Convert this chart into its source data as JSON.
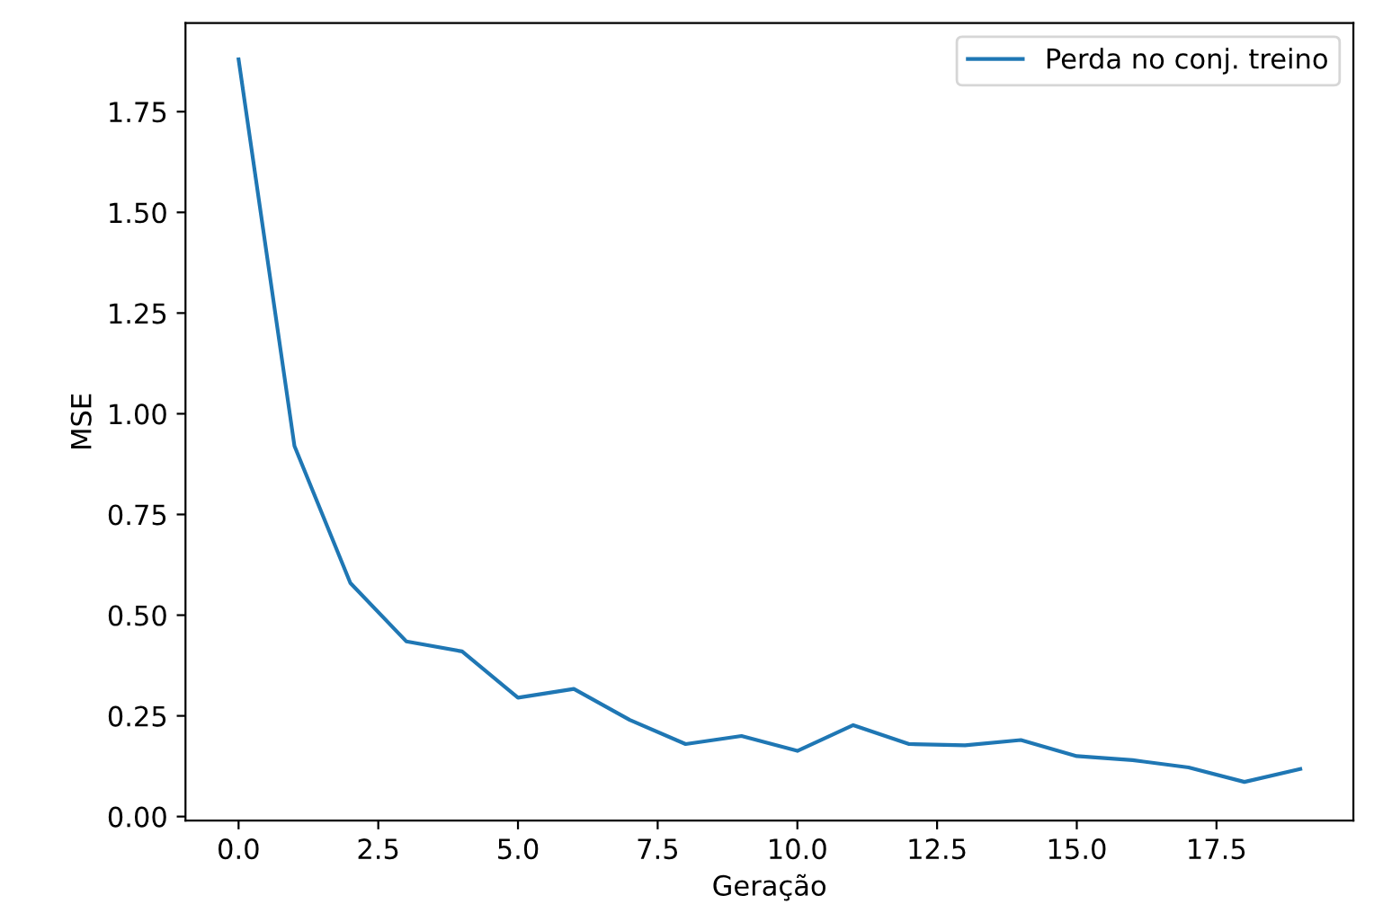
{
  "chart_data": {
    "type": "line",
    "xlabel": "Geração",
    "ylabel": "MSE",
    "x": [
      0,
      1,
      2,
      3,
      4,
      5,
      6,
      7,
      8,
      9,
      10,
      11,
      12,
      13,
      14,
      15,
      16,
      17,
      18,
      19
    ],
    "series": [
      {
        "name": "Perda no conj. treino",
        "color": "#1f77b4",
        "values": [
          1.88,
          0.92,
          0.58,
          0.435,
          0.41,
          0.295,
          0.317,
          0.24,
          0.18,
          0.2,
          0.163,
          0.227,
          0.18,
          0.177,
          0.19,
          0.15,
          0.14,
          0.122,
          0.086,
          0.118
        ]
      }
    ],
    "xlim": [
      -0.95,
      19.95
    ],
    "xticks": [
      {
        "value": 0,
        "label": "0.0"
      },
      {
        "value": 2.5,
        "label": "2.5"
      },
      {
        "value": 5,
        "label": "5.0"
      },
      {
        "value": 7.5,
        "label": "7.5"
      },
      {
        "value": 10,
        "label": "10.0"
      },
      {
        "value": 12.5,
        "label": "12.5"
      },
      {
        "value": 15,
        "label": "15.0"
      },
      {
        "value": 17.5,
        "label": "17.5"
      }
    ],
    "ylim": [
      -0.01,
      1.97
    ],
    "yticks": [
      {
        "value": 0,
        "label": "0.00"
      },
      {
        "value": 0.25,
        "label": "0.25"
      },
      {
        "value": 0.5,
        "label": "0.50"
      },
      {
        "value": 0.75,
        "label": "0.75"
      },
      {
        "value": 1,
        "label": "1.00"
      },
      {
        "value": 1.25,
        "label": "1.25"
      },
      {
        "value": 1.5,
        "label": "1.50"
      },
      {
        "value": 1.75,
        "label": "1.75"
      }
    ],
    "legend": "top right",
    "grid": false
  }
}
